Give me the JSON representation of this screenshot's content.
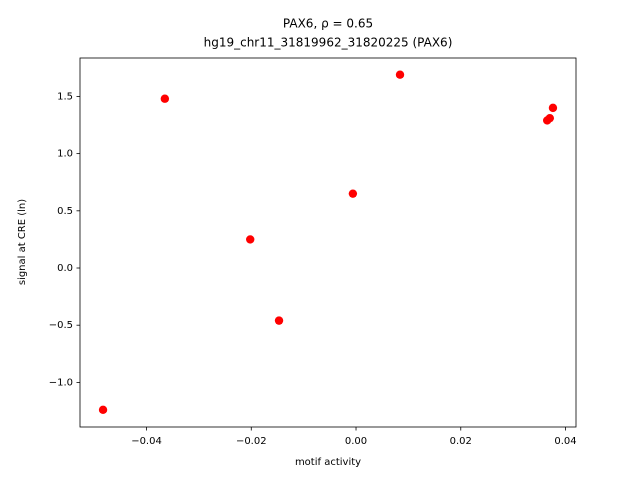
{
  "chart_data": {
    "type": "scatter",
    "title": "PAX6, ρ = 0.65",
    "subtitle": "hg19_chr11_31819962_31820225 (PAX6)",
    "x_label": "motif activity",
    "y_label": "signal at CRE (ln)",
    "color": "#ff0000",
    "x": [
      -0.0483,
      -0.0365,
      -0.0202,
      -0.0147,
      -0.0006,
      0.0084,
      0.0365,
      0.037,
      0.0376
    ],
    "values": [
      -1.24,
      1.48,
      0.25,
      -0.46,
      0.65,
      1.69,
      1.29,
      1.31,
      1.4
    ],
    "xlim": [
      -0.0527,
      0.042
    ],
    "ylim": [
      -1.39,
      1.836
    ],
    "xticks": [
      {
        "value": -0.04,
        "label": "−0.04"
      },
      {
        "value": -0.02,
        "label": "−0.02"
      },
      {
        "value": 0,
        "label": "0.00"
      },
      {
        "value": 0.02,
        "label": "0.02"
      },
      {
        "value": 0.04,
        "label": "0.04"
      }
    ],
    "yticks": [
      {
        "value": -1,
        "label": "−1.0"
      },
      {
        "value": -0.5,
        "label": "−0.5"
      },
      {
        "value": 0,
        "label": "0.0"
      },
      0.5,
      {
        "value": 1,
        "label": "1.0"
      },
      1.5
    ],
    "grid": false
  }
}
